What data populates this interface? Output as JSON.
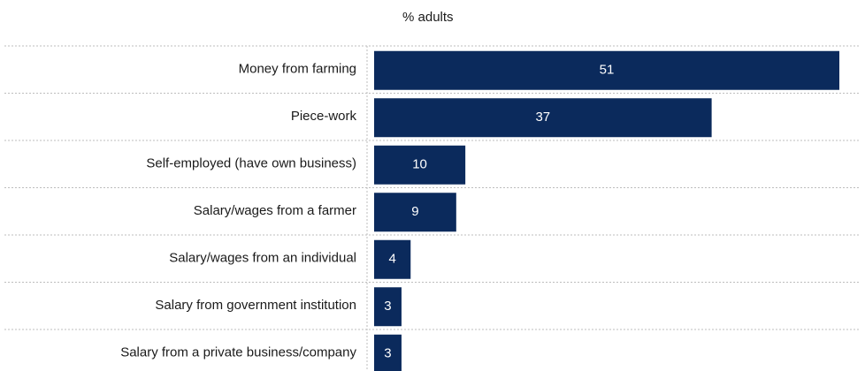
{
  "colors": {
    "bar": "#0b2a5c",
    "bar_label": "#ffffff",
    "gridline": "#bdbdbd",
    "text": "#1a1a1a"
  },
  "chart_data": {
    "type": "bar",
    "orientation": "horizontal",
    "unit_label": "% adults",
    "categories": [
      "Money from farming",
      "Piece-work",
      "Self-employed (have own business)",
      "Salary/wages from a farmer",
      "Salary/wages from an individual",
      "Salary from government institution",
      "Salary from a private business/company"
    ],
    "values": [
      51,
      37,
      10,
      9,
      4,
      3,
      3
    ],
    "xlim": [
      0,
      51
    ],
    "data_labels": true,
    "grid": "dotted row separators"
  }
}
